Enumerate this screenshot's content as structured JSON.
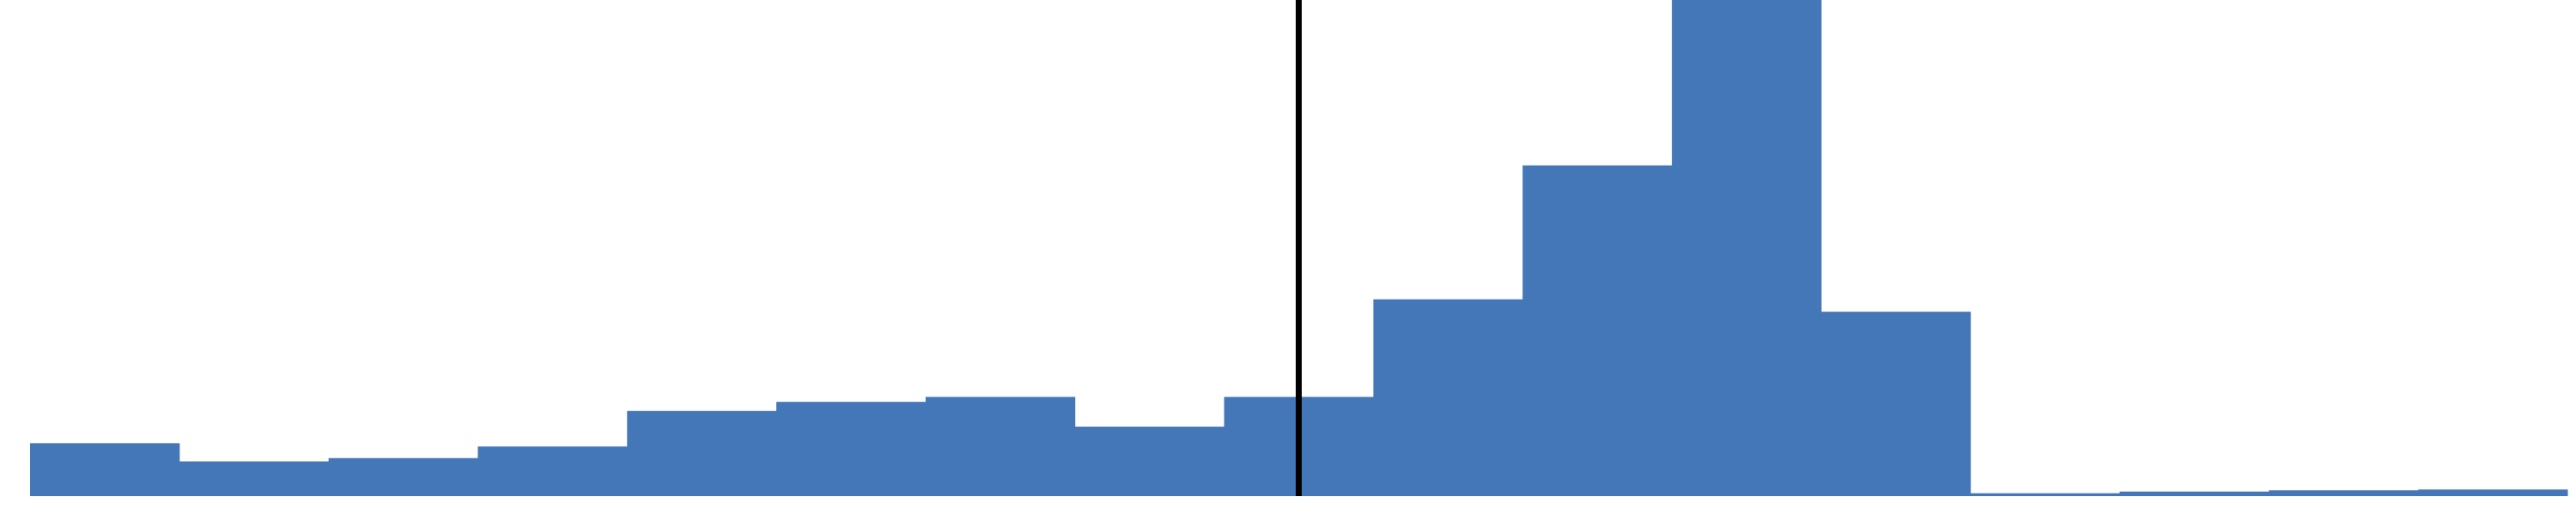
{
  "chart_data": {
    "type": "bar",
    "subtype": "histogram",
    "title": "",
    "xlabel": "",
    "ylabel": "",
    "axes_visible": false,
    "grid": false,
    "legend": "none",
    "bar_color": "#4477b8",
    "marker_color": "#000000",
    "bins": 17,
    "values": [
      6.4,
      4.2,
      4.6,
      6.0,
      10.3,
      11.4,
      12.0,
      8.4,
      12.0,
      23.8,
      40.0,
      60.0,
      22.3,
      0.35,
      0.55,
      0.7,
      0.8
    ],
    "y_range": [
      0,
      60
    ],
    "marker_line": {
      "bin_position": 8.5
    }
  }
}
